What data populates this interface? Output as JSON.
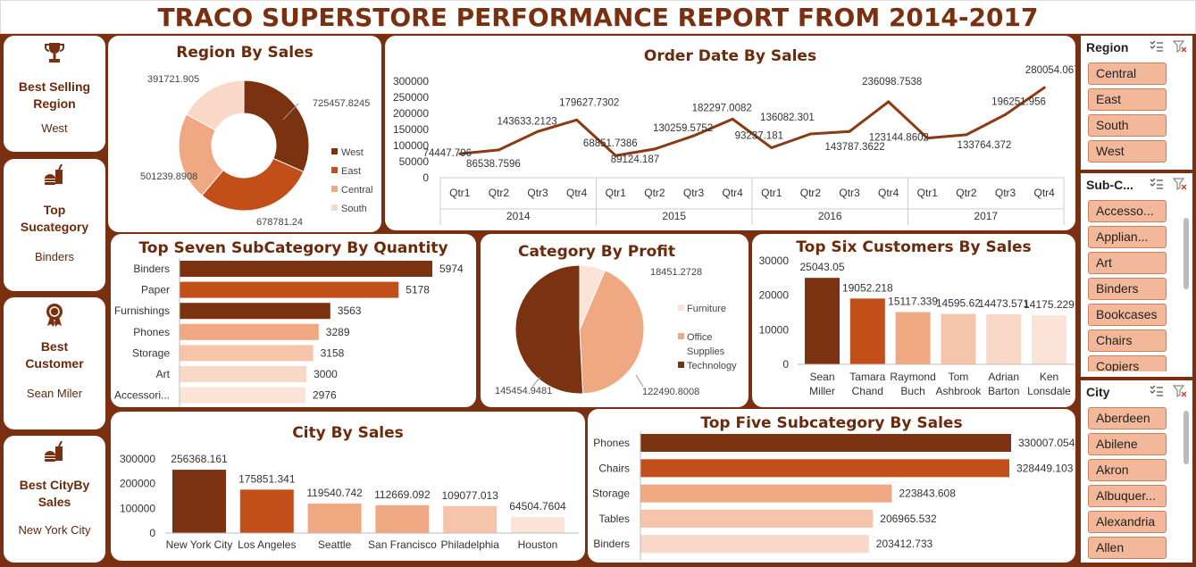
{
  "title": "TRACO SUPERSTORE PERFORMANCE REPORT  FROM 2014-2017",
  "kpis": [
    {
      "title_l1": "Best Selling",
      "title_l2": "Region",
      "value": "West",
      "icon": "trophy-icon"
    },
    {
      "title_l1": "Top",
      "title_l2": "Sucategory",
      "value": "Binders",
      "icon": "fast-food-icon"
    },
    {
      "title_l1": "Best",
      "title_l2": "Customer",
      "value": "Sean Miler",
      "icon": "award-ribbon-icon"
    },
    {
      "title_l1": "Best CityBy",
      "title_l2": "Sales",
      "value": "New York City",
      "icon": "fast-food-icon"
    }
  ],
  "panels": {
    "region": "Region By Sales",
    "order_date": "Order Date By Sales",
    "subcat_qty": "Top Seven SubCategory By Quantity",
    "category_profit": "Category By Profit",
    "customers": "Top Six Customers By Sales",
    "city": "City By Sales",
    "subcat_sales": "Top Five Subcategory By Sales"
  },
  "colors": {
    "dark": "#7b3210",
    "c2": "#c24f19",
    "c3": "#f0a882",
    "c4": "#f5c4ab",
    "c5": "#f9d8c8",
    "c6": "#fbe3d7",
    "line": "#8b3a12"
  },
  "chart_data": [
    {
      "id": "region",
      "type": "pie",
      "title": "Region By Sales",
      "categories": [
        "West",
        "East",
        "Central",
        "South"
      ],
      "values": [
        725457.8245,
        678781.24,
        501239.8908,
        391721.905
      ],
      "labels": [
        "725457.8245",
        "678781.24",
        "501239.8908",
        "391721.905"
      ],
      "legend": "right",
      "donut": true
    },
    {
      "id": "order_date",
      "type": "line",
      "title": "Order Date By Sales",
      "years": [
        "2014",
        "2015",
        "2016",
        "2017"
      ],
      "quarters": [
        "Qtr1",
        "Qtr2",
        "Qtr3",
        "Qtr4"
      ],
      "values": [
        74447.796,
        86538.7596,
        143633.2123,
        179627.7302,
        68851.7386,
        89124.187,
        130259.5752,
        182297.0082,
        93237.181,
        136082.301,
        143787.3622,
        236098.7538,
        123144.8602,
        133764.372,
        196251.956,
        280054.067
      ],
      "labels": [
        "74447.796",
        "86538.7596",
        "143633.2123",
        "179627.7302",
        "68851.7386",
        "89124.187",
        "130259.5752",
        "182297.0082",
        "93237.181",
        "136082.301",
        "143787.3622",
        "236098.7538",
        "123144.8602",
        "133764.372",
        "196251.956",
        "280054.067"
      ],
      "yticks": [
        "300000",
        "250000",
        "200000",
        "150000",
        "100000",
        "50000",
        "0"
      ],
      "ylim": [
        0,
        300000
      ]
    },
    {
      "id": "subcat_qty",
      "type": "bar",
      "orientation": "horizontal",
      "title": "Top Seven SubCategory By Quantity",
      "categories": [
        "Binders",
        "Paper",
        "Furnishings",
        "Phones",
        "Storage",
        "Art",
        "Accessori..."
      ],
      "values": [
        5974,
        5178,
        3563,
        3289,
        3158,
        3000,
        2976
      ],
      "labels": [
        "5974",
        "5178",
        "3563",
        "3289",
        "3158",
        "3000",
        "2976"
      ]
    },
    {
      "id": "category_profit",
      "type": "pie",
      "title": "Category By Profit",
      "categories": [
        "Furniture",
        "Office Supplies",
        "Technology"
      ],
      "values": [
        18451.2728,
        122490.8008,
        145454.9481
      ],
      "labels": [
        "18451.2728",
        "122490.8008",
        "145454.9481"
      ],
      "legend": "right"
    },
    {
      "id": "customers",
      "type": "bar",
      "title": "Top Six Customers By Sales",
      "categories": [
        "Sean Miller",
        "Tamara Chand",
        "Raymond Buch",
        "Tom Ashbrook",
        "Adrian Barton",
        "Ken Lonsdale"
      ],
      "category_lines": [
        [
          "Sean",
          "Miller"
        ],
        [
          "Tamara",
          "Chand"
        ],
        [
          "Raymond",
          "Buch"
        ],
        [
          "Tom",
          "Ashbrook"
        ],
        [
          "Adrian",
          "Barton"
        ],
        [
          "Ken",
          "Lonsdale"
        ]
      ],
      "values": [
        25043.05,
        19052.218,
        15117.339,
        14595.62,
        14473.571,
        14175.229
      ],
      "labels": [
        "25043.05",
        "19052.218",
        "15117.339",
        "14595.62",
        "14473.571",
        "14175.229"
      ],
      "yticks": [
        "30000",
        "20000",
        "10000",
        "0"
      ],
      "ylim": [
        0,
        30000
      ]
    },
    {
      "id": "city",
      "type": "bar",
      "title": "City By Sales",
      "categories": [
        "New York City",
        "Los Angeles",
        "Seattle",
        "San Francisco",
        "Philadelphia",
        "Houston"
      ],
      "values": [
        256368.161,
        175851.341,
        119540.742,
        112669.092,
        109077.013,
        64504.7604
      ],
      "labels": [
        "256368.161",
        "175851.341",
        "119540.742",
        "112669.092",
        "109077.013",
        "64504.7604"
      ],
      "yticks": [
        "300000",
        "200000",
        "100000",
        "0"
      ],
      "ylim": [
        0,
        300000
      ]
    },
    {
      "id": "subcat_sales",
      "type": "bar",
      "orientation": "horizontal",
      "title": "Top Five Subcategory By Sales",
      "categories": [
        "Phones",
        "Chairs",
        "Storage",
        "Tables",
        "Binders"
      ],
      "values": [
        330007.054,
        328449.103,
        223843.608,
        206965.532,
        203412.733
      ],
      "labels": [
        "330007.054",
        "328449.103",
        "223843.608",
        "206965.532",
        "203412.733"
      ]
    }
  ],
  "slicers": [
    {
      "title": "Region",
      "items": [
        "Central",
        "East",
        "South",
        "West"
      ]
    },
    {
      "title": "Sub-C...",
      "items": [
        "Accesso...",
        "Applian...",
        "Art",
        "Binders",
        "Bookcases",
        "Chairs",
        "Copiers"
      ]
    },
    {
      "title": "City",
      "items": [
        "Aberdeen",
        "Abilene",
        "Akron",
        "Albuquer...",
        "Alexandria",
        "Allen"
      ]
    }
  ]
}
